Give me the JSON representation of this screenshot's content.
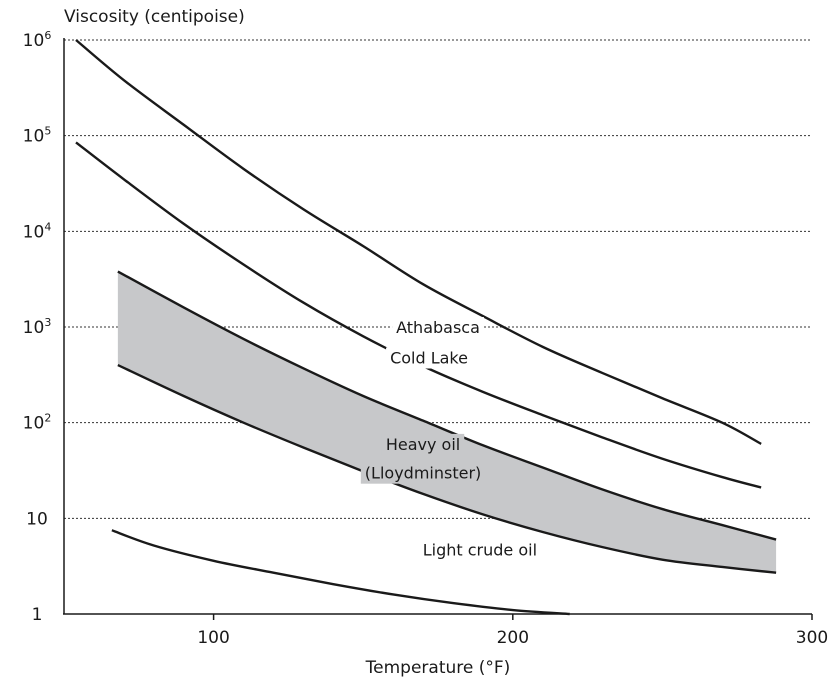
{
  "chart_data": {
    "type": "line",
    "title": "",
    "xlabel": "Temperature (°F)",
    "ylabel": "Viscosity (centipoise)",
    "xlim": [
      50,
      300
    ],
    "ylim": [
      1,
      1000000
    ],
    "y_scale": "log",
    "grid": "horizontal dotted",
    "x_ticks": [
      {
        "value": 100,
        "label": "100"
      },
      {
        "value": 200,
        "label": "200"
      },
      {
        "value": 300,
        "label": "300"
      }
    ],
    "y_ticks": [
      {
        "value": 1,
        "base": "1",
        "exp": ""
      },
      {
        "value": 10,
        "base": "10",
        "exp": ""
      },
      {
        "value": 100,
        "base": "10",
        "exp": "2"
      },
      {
        "value": 1000,
        "base": "10",
        "exp": "3"
      },
      {
        "value": 10000,
        "base": "10",
        "exp": "4"
      },
      {
        "value": 100000,
        "base": "10",
        "exp": "5"
      },
      {
        "value": 1000000,
        "base": "10",
        "exp": "6"
      }
    ],
    "series": [
      {
        "name": "Athabasca",
        "x": [
          54,
          70,
          90,
          110,
          130,
          150,
          170,
          190,
          210,
          230,
          250,
          270,
          283
        ],
        "y": [
          1000000,
          380000,
          130000,
          45000,
          17000,
          7000,
          2800,
          1300,
          620,
          330,
          180,
          100,
          60
        ]
      },
      {
        "name": "Cold Lake",
        "x": [
          54,
          70,
          90,
          110,
          130,
          150,
          170,
          190,
          210,
          230,
          250,
          270,
          283
        ],
        "y": [
          85000,
          35000,
          12000,
          4500,
          1800,
          800,
          390,
          210,
          120,
          70,
          42,
          27,
          21
        ]
      },
      {
        "name": "Heavy oil",
        "name_line2": "(Lloydminster)",
        "type": "band",
        "x": [
          68,
          90,
          110,
          130,
          150,
          170,
          190,
          210,
          230,
          250,
          270,
          288
        ],
        "upper": [
          3800,
          1600,
          750,
          370,
          190,
          105,
          58,
          34,
          20,
          12.5,
          8.5,
          6
        ],
        "lower": [
          400,
          190,
          100,
          55,
          31,
          18,
          11,
          7.2,
          5,
          3.7,
          3.1,
          2.7
        ]
      },
      {
        "name": "Light crude oil",
        "x": [
          66,
          80,
          100,
          120,
          140,
          160,
          180,
          200,
          219
        ],
        "y": [
          7.5,
          5.2,
          3.6,
          2.7,
          2.05,
          1.6,
          1.3,
          1.1,
          1
        ]
      }
    ],
    "annotations": [
      {
        "series": "Athabasca",
        "text": "Athabasca",
        "x": 175,
        "y": 1000
      },
      {
        "series": "Cold Lake",
        "text": "Cold Lake",
        "x": 172,
        "y": 480
      },
      {
        "series": "Heavy oil",
        "text": "Heavy oil",
        "x": 170,
        "y": 60
      },
      {
        "series": "Heavy oil",
        "text": "(Lloydminster)",
        "x": 170,
        "y": 30
      },
      {
        "series": "Light crude oil",
        "text": "Light crude oil",
        "x": 189,
        "y": 4.7
      }
    ]
  }
}
